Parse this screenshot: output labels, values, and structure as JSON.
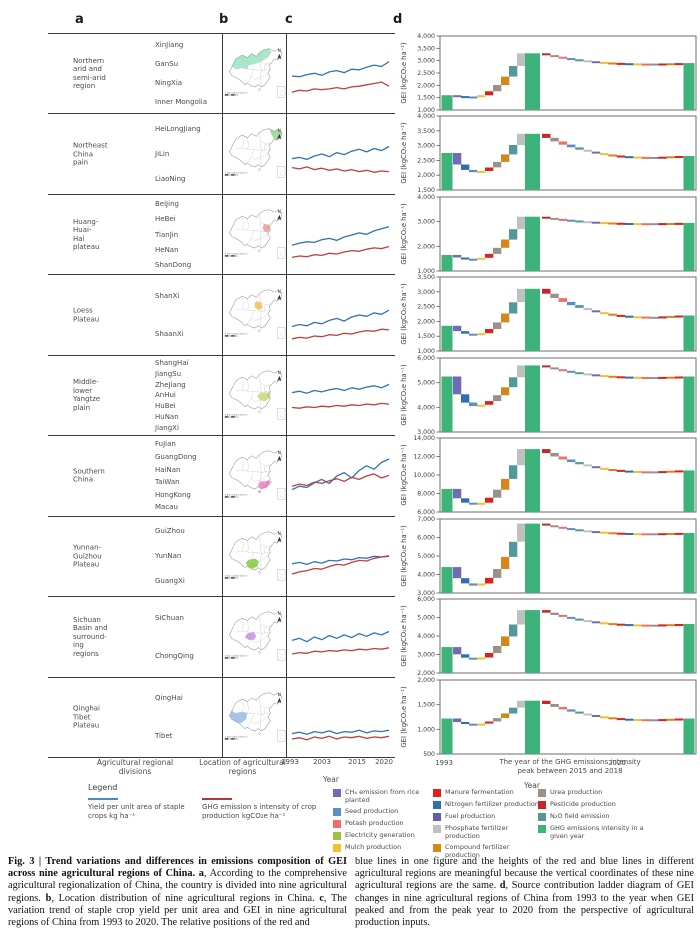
{
  "figure": {
    "panel_letters": [
      "a",
      "b",
      "c",
      "d"
    ],
    "col_a_footer": "Agricultural regional divisions",
    "col_b_footer": "Location of agricultural regions",
    "c_axis": {
      "ticks": [
        "1993",
        "2003",
        "2015",
        "2020"
      ],
      "label": "Year"
    },
    "d_axis": {
      "tick_left": "1993",
      "tick_mid": "The year of the GHG emissions intensity peak between 2015 and 2018",
      "tick_right": "2020",
      "label": "Year",
      "ylabel": "GEI (kgCO₂e ha⁻¹)"
    },
    "maps": {
      "north_label": "N",
      "scale_text": "0 430 1,000  3,000 km"
    },
    "colors": {
      "line_blue": "#3272b5",
      "line_red": "#bf3f3f",
      "green_bar": "#3eb379",
      "map_outline": "#8f8f8f",
      "plot_border": "#6e6e6e"
    },
    "ladder_palette_asc": [
      "#6f6bb8",
      "#2f6fae",
      "#5b8ec4",
      "#f2c12e",
      "#e0201b",
      "#9b9189",
      "#d7861d",
      "#53989a",
      "#c0c0c0"
    ],
    "ladder_palette_desc": [
      "#c2272d",
      "#9b9189",
      "#ee6f6a",
      "#5b8ec4",
      "#53989a",
      "#c0c0c0",
      "#6f6bb8",
      "#f2c12e",
      "#d7861d",
      "#e0201b",
      "#2f6fae",
      "#f2c12e",
      "#ee6f6a",
      "#9b9189",
      "#c2272d",
      "#d7861d",
      "#e0201b"
    ],
    "rows": [
      {
        "region": "Northern\narid and\nsemi-arid\nregion",
        "provinces": [
          "XinJiang",
          "GanSu",
          "NingXia",
          "Inner Mongolia"
        ],
        "map_color": "#a9e7cd",
        "map_key": "north"
      },
      {
        "region": "Northeast\nChina\npain",
        "provinces": [
          "HeiLongJiang",
          "JiLin",
          "LiaoNing"
        ],
        "map_color": "#9ede9e",
        "map_key": "northeast"
      },
      {
        "region": "Huang-\nHuai-\nHai\nplateau",
        "provinces": [
          "BeiJing",
          "HeBei",
          "TianJin",
          "HeNan",
          "ShanDong"
        ],
        "map_color": "#f2a6a0",
        "map_key": "huanghuaihai"
      },
      {
        "region": "Loess\nPlateau",
        "provinces": [
          "ShanXi",
          "ShaanXi"
        ],
        "map_color": "#f3c96d",
        "map_key": "loess"
      },
      {
        "region": "Middle-\nlower\nYangtze\nplain",
        "provinces": [
          "ShangHai",
          "JiangSu",
          "ZheJiang",
          "AnHui",
          "HuBei",
          "HuNan",
          "JiangXi"
        ],
        "map_color": "#cfe08a",
        "map_key": "yangtze"
      },
      {
        "region": "Southern\nChina",
        "provinces": [
          "FuJian",
          "GuangDong",
          "HaiNan",
          "TaiWan",
          "HongKong",
          "Macau"
        ],
        "map_color": "#ef8fcf",
        "map_key": "southern"
      },
      {
        "region": "Yunnan-\nGuizhou\nPlateau",
        "provinces": [
          "GuiZhou",
          "YunNan",
          "GuangXi"
        ],
        "map_color": "#8ed24f",
        "map_key": "yungui"
      },
      {
        "region": "Sichuan\nBasin and\nsurround-\ning\nregions",
        "provinces": [
          "SiChuan",
          "ChongQing"
        ],
        "map_color": "#c8a2e0",
        "map_key": "sichuan"
      },
      {
        "region": "Qinghai\nTibet\nPlateau",
        "provinces": [
          "QingHai",
          "Tibet"
        ],
        "map_color": "#a9c4ea",
        "map_key": "tibet"
      }
    ]
  },
  "chart_data": [
    {
      "region": "Northern arid and semi-arid region",
      "line_chart": {
        "type": "line",
        "x_range": [
          1993,
          2020
        ],
        "x_ticks": [
          "1993",
          "2003",
          "2015",
          "2020"
        ],
        "note": "relative units, no y-axis shown",
        "series": [
          {
            "name": "Yield per unit area of staple crops",
            "color_key": "line_blue",
            "values": [
              50,
              49,
              52,
              54,
              51,
              56,
              58,
              55,
              60,
              59,
              63,
              66,
              64,
              71
            ]
          },
          {
            "name": "GHG emissions intensity of crop production",
            "color_key": "line_red",
            "values": [
              26,
              29,
              28,
              31,
              30,
              31,
              33,
              31,
              34,
              35,
              37,
              39,
              41,
              35
            ]
          }
        ]
      },
      "ladder": {
        "type": "waterfall",
        "ylabel": "GEI (kgCO₂e ha⁻¹)",
        "ylim": [
          1000,
          4000
        ],
        "ytick_step": 500,
        "gei_1993": 1600,
        "gei_min": 1540,
        "gei_peak": 3300,
        "gei_2020": 2900
      }
    },
    {
      "region": "Northeast China pain",
      "line_chart": {
        "type": "line",
        "x_range": [
          1993,
          2020
        ],
        "x_ticks": [
          "1993",
          "2003",
          "2015",
          "2020"
        ],
        "note": "relative units, no y-axis shown",
        "series": [
          {
            "name": "Yield per unit area of staple crops",
            "color_key": "line_blue",
            "values": [
              46,
              48,
              45,
              50,
              53,
              49,
              55,
              52,
              57,
              60,
              56,
              61,
              58,
              64
            ]
          },
          {
            "name": "GHG emissions intensity of crop production",
            "color_key": "line_red",
            "values": [
              33,
              31,
              34,
              30,
              32,
              29,
              31,
              28,
              30,
              27,
              29,
              26,
              28,
              27
            ]
          }
        ]
      },
      "ladder": {
        "type": "waterfall",
        "ylabel": "GEI (kgCO₂e ha⁻¹)",
        "ylim": [
          1500,
          4000
        ],
        "ytick_step": 500,
        "gei_1993": 2750,
        "gei_min": 2100,
        "gei_peak": 3400,
        "gei_2020": 2650
      }
    },
    {
      "region": "Huang-Huai-Hai plateau",
      "line_chart": {
        "type": "line",
        "x_range": [
          1993,
          2020
        ],
        "x_ticks": [
          "1993",
          "2003",
          "2015",
          "2020"
        ],
        "note": "relative units, no y-axis shown",
        "series": [
          {
            "name": "Yield per unit area of staple crops",
            "color_key": "line_blue",
            "values": [
              38,
              41,
              43,
              42,
              46,
              48,
              45,
              50,
              53,
              56,
              54,
              59,
              62,
              65
            ]
          },
          {
            "name": "GHG emissions intensity of crop production",
            "color_key": "line_red",
            "values": [
              20,
              22,
              21,
              24,
              23,
              26,
              25,
              28,
              30,
              29,
              32,
              34,
              33,
              36
            ]
          }
        ]
      },
      "ladder": {
        "type": "waterfall",
        "ylabel": "GEI (kgCO₂e ha⁻¹)",
        "ylim": [
          1000,
          4000
        ],
        "ytick_step": 1000,
        "gei_1993": 1650,
        "gei_min": 1480,
        "gei_peak": 3200,
        "gei_2020": 2950
      }
    },
    {
      "region": "Loess Plateau",
      "line_chart": {
        "type": "line",
        "x_range": [
          1993,
          2020
        ],
        "x_ticks": [
          "1993",
          "2003",
          "2015",
          "2020"
        ],
        "note": "relative units, no y-axis shown",
        "series": [
          {
            "name": "Yield per unit area of staple crops",
            "color_key": "line_blue",
            "values": [
              36,
              39,
              37,
              42,
              40,
              45,
              48,
              44,
              50,
              53,
              51,
              56,
              54,
              60
            ]
          },
          {
            "name": "GHG emissions intensity of crop production",
            "color_key": "line_red",
            "values": [
              18,
              20,
              19,
              22,
              21,
              24,
              23,
              26,
              25,
              28,
              30,
              29,
              32,
              31
            ]
          }
        ]
      },
      "ladder": {
        "type": "waterfall",
        "ylabel": "GEI (kgCO₂e ha⁻¹)",
        "ylim": [
          1000,
          3500
        ],
        "ytick_step": 500,
        "gei_1993": 1850,
        "gei_min": 1550,
        "gei_peak": 3100,
        "gei_2020": 2200
      }
    },
    {
      "region": "Middle-lower Yangtze plain",
      "line_chart": {
        "type": "line",
        "x_range": [
          1993,
          2020
        ],
        "x_ticks": [
          "1993",
          "2003",
          "2015",
          "2020"
        ],
        "note": "relative units, no y-axis shown",
        "series": [
          {
            "name": "Yield per unit area of staple crops",
            "color_key": "line_blue",
            "values": [
              58,
              60,
              57,
              61,
              59,
              62,
              64,
              61,
              65,
              63,
              66,
              68,
              65,
              70
            ]
          },
          {
            "name": "GHG emissions intensity of crop production",
            "color_key": "line_red",
            "values": [
              36,
              35,
              37,
              36,
              38,
              37,
              39,
              38,
              40,
              39,
              41,
              40,
              42,
              41
            ]
          }
        ]
      },
      "ladder": {
        "type": "waterfall",
        "ylabel": "GEI (kgCO₂e ha⁻¹)",
        "ylim": [
          3000,
          6000
        ],
        "ytick_step": 1000,
        "gei_1993": 5250,
        "gei_min": 4050,
        "gei_peak": 5700,
        "gei_2020": 5250
      }
    },
    {
      "region": "Southern China",
      "line_chart": {
        "type": "line",
        "x_range": [
          1993,
          2020
        ],
        "x_ticks": [
          "1993",
          "2003",
          "2015",
          "2020"
        ],
        "note": "relative units, no y-axis shown",
        "series": [
          {
            "name": "Yield per unit area of staple crops",
            "color_key": "line_blue",
            "values": [
              33,
              38,
              36,
              43,
              48,
              42,
              53,
              58,
              50,
              61,
              68,
              63,
              73,
              78
            ]
          },
          {
            "name": "GHG emissions intensity of crop production",
            "color_key": "line_red",
            "values": [
              38,
              41,
              39,
              44,
              42,
              46,
              49,
              45,
              51,
              48,
              53,
              56,
              50,
              54
            ]
          }
        ]
      },
      "ladder": {
        "type": "waterfall",
        "ylabel": "GEI (kgCO₂e ha⁻¹)",
        "ylim": [
          6000,
          14000
        ],
        "ytick_step": 2000,
        "gei_1993": 8500,
        "gei_min": 6800,
        "gei_peak": 12800,
        "gei_2020": 10500
      }
    },
    {
      "region": "Yunnan-Guizhou Plateau",
      "line_chart": {
        "type": "line",
        "x_range": [
          1993,
          2020
        ],
        "x_ticks": [
          "1993",
          "2003",
          "2015",
          "2020"
        ],
        "note": "relative units, no y-axis shown",
        "series": [
          {
            "name": "Yield per unit area of staple crops",
            "color_key": "line_blue",
            "values": [
              43,
              45,
              42,
              46,
              44,
              48,
              47,
              50,
              49,
              52,
              51,
              54,
              53,
              55
            ]
          },
          {
            "name": "GHG emissions intensity of crop production",
            "color_key": "line_red",
            "values": [
              28,
              31,
              33,
              36,
              35,
              39,
              42,
              41,
              45,
              48,
              47,
              51,
              53,
              54
            ]
          }
        ]
      },
      "ladder": {
        "type": "waterfall",
        "ylabel": "GEI (kgCO₂e ha⁻¹)",
        "ylim": [
          3000,
          7000
        ],
        "ytick_step": 1000,
        "gei_1993": 4400,
        "gei_min": 3400,
        "gei_peak": 6750,
        "gei_2020": 6250
      }
    },
    {
      "region": "Sichuan Basin and surrounding regions",
      "line_chart": {
        "type": "line",
        "x_range": [
          1993,
          2020
        ],
        "x_ticks": [
          "1993",
          "2003",
          "2015",
          "2020"
        ],
        "note": "relative units, no y-axis shown",
        "series": [
          {
            "name": "Yield per unit area of staple crops",
            "color_key": "line_blue",
            "values": [
              48,
              51,
              46,
              53,
              49,
              55,
              51,
              56,
              52,
              58,
              54,
              59,
              56,
              61
            ]
          },
          {
            "name": "GHG emissions intensity of crop production",
            "color_key": "line_red",
            "values": [
              28,
              30,
              29,
              32,
              31,
              33,
              32,
              34,
              33,
              35,
              34,
              36,
              35,
              37
            ]
          }
        ]
      },
      "ladder": {
        "type": "waterfall",
        "ylabel": "GEI (kgCO₂e ha⁻¹)",
        "ylim": [
          2000,
          6000
        ],
        "ytick_step": 1000,
        "gei_1993": 3400,
        "gei_min": 2750,
        "gei_peak": 5400,
        "gei_2020": 4650
      }
    },
    {
      "region": "Qinghai Tibet Plateau",
      "line_chart": {
        "type": "line",
        "x_range": [
          1993,
          2020
        ],
        "x_ticks": [
          "1993",
          "2003",
          "2015",
          "2020"
        ],
        "note": "relative units, no y-axis shown",
        "series": [
          {
            "name": "Yield per unit area of staple crops",
            "color_key": "line_blue",
            "values": [
              30,
              32,
              29,
              33,
              31,
              34,
              30,
              33,
              32,
              35,
              31,
              34,
              33,
              35
            ]
          },
          {
            "name": "GHG emissions intensity of crop production",
            "color_key": "line_red",
            "values": [
              22,
              24,
              21,
              25,
              23,
              26,
              22,
              25,
              24,
              26,
              23,
              25,
              24,
              26
            ]
          }
        ]
      },
      "ladder": {
        "type": "waterfall",
        "ylabel": "GEI (kgCO₂e ha⁻¹)",
        "ylim": [
          500,
          2000
        ],
        "ytick_step": 500,
        "gei_1993": 1220,
        "gei_min": 1100,
        "gei_peak": 1580,
        "gei_2020": 1220
      }
    }
  ],
  "legend": {
    "title": "Legend",
    "line_items": [
      {
        "label": "Yield per unit area of staple crops kg ha⁻¹",
        "color": "#4d8ac2"
      },
      {
        "label": "GHG emission s intensity of crop production kgCO₂e ha⁻¹",
        "color": "#b5373a"
      }
    ],
    "columns": [
      [
        {
          "label": "CH₄ emission from rice planted",
          "color": "#6f6bb8"
        },
        {
          "label": "Seed production",
          "color": "#5b8ec4"
        },
        {
          "label": "Potash production",
          "color": "#ee6f6a"
        },
        {
          "label": "Electricity generation",
          "color": "#a3c23a"
        },
        {
          "label": "Mulch production",
          "color": "#f2c12e"
        }
      ],
      [
        {
          "label": "Manure fermentation",
          "color": "#e0201b"
        },
        {
          "label": "Nitrogen fertilizer production",
          "color": "#2f6fae"
        },
        {
          "label": "Fuel production",
          "color": "#5f5fae"
        },
        {
          "label": "Phosphate fertilizer production",
          "color": "#c0c0c0"
        },
        {
          "label": "Compound fertilizer production",
          "color": "#d7861d"
        }
      ],
      [
        {
          "label": "Urea production",
          "color": "#9b9189"
        },
        {
          "label": "Pesticide production",
          "color": "#c2272d"
        },
        {
          "label": "N₂O field emission",
          "color": "#53989a"
        },
        {
          "label": "GHG emissions intensity in a given year",
          "color": "#3eb379"
        }
      ]
    ]
  },
  "caption": {
    "left": [
      {
        "bold": true,
        "text": "Fig. 3 | Trend variations and differences in emissions composition of GEI across nine agricultural regions of China. "
      },
      {
        "bold": true,
        "text": "a"
      },
      {
        "bold": false,
        "text": ", According to the comprehensive agricultural regionalization of China, the country is divided into nine agricultural regions. "
      },
      {
        "bold": true,
        "text": "b"
      },
      {
        "bold": false,
        "text": ", Location distribution of nine agricultural regions in China. "
      },
      {
        "bold": true,
        "text": "c"
      },
      {
        "bold": false,
        "text": ", The variation trend of staple crop yield per unit area and GEI in nine agricultural regions of China from 1993 to 2020. The relative positions of the red and"
      }
    ],
    "right": [
      {
        "bold": false,
        "text": "blue lines in one figure and the heights of the red and blue lines in different agricultural regions are meaningful because the vertical coordinates of these nine agricultural regions are the same. "
      },
      {
        "bold": true,
        "text": "d"
      },
      {
        "bold": false,
        "text": ", Source contribution ladder diagram of GEI changes in nine agricultural regions of China from 1993 to the year when GEI peaked and from the peak year to 2020 from the perspective of agricultural production inputs."
      }
    ]
  }
}
